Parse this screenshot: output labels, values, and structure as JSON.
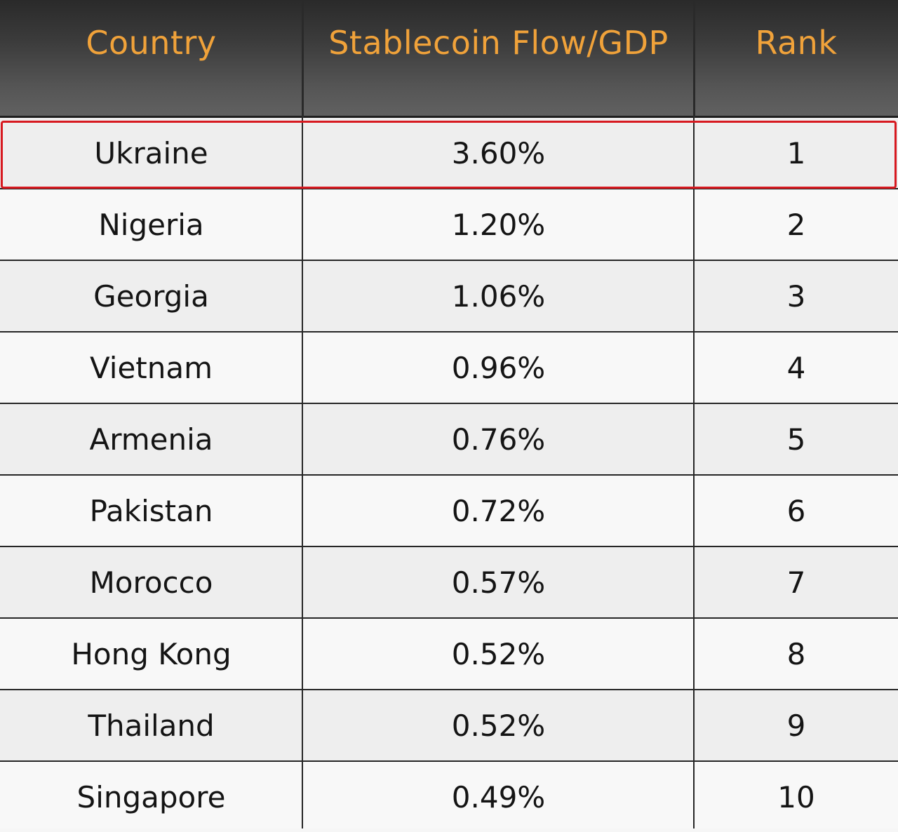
{
  "table": {
    "headers": [
      "Country",
      "Stablecoin Flow/GDP",
      "Rank"
    ],
    "highlight_color": "#d71920",
    "header_text_color": "#f0a23a",
    "rows": [
      {
        "country": "Ukraine",
        "flow": "3.60%",
        "rank": "1",
        "highlighted": true
      },
      {
        "country": "Nigeria",
        "flow": "1.20%",
        "rank": "2"
      },
      {
        "country": "Georgia",
        "flow": "1.06%",
        "rank": "3"
      },
      {
        "country": "Vietnam",
        "flow": "0.96%",
        "rank": "4"
      },
      {
        "country": "Armenia",
        "flow": "0.76%",
        "rank": "5"
      },
      {
        "country": "Pakistan",
        "flow": "0.72%",
        "rank": "6"
      },
      {
        "country": "Morocco",
        "flow": "0.57%",
        "rank": "7"
      },
      {
        "country": "Hong Kong",
        "flow": "0.52%",
        "rank": "8"
      },
      {
        "country": "Thailand",
        "flow": "0.52%",
        "rank": "9"
      },
      {
        "country": "Singapore",
        "flow": "0.49%",
        "rank": "10"
      }
    ]
  }
}
